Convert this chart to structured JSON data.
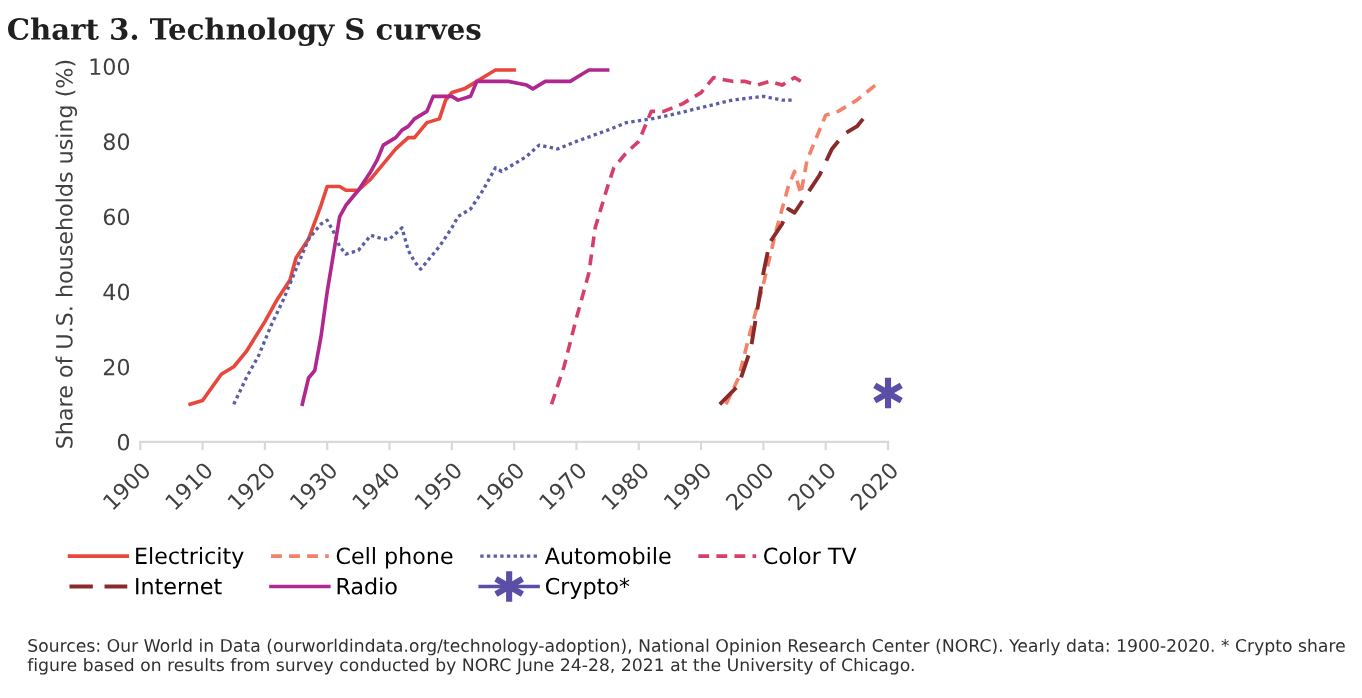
{
  "chart_data": {
    "type": "line",
    "title": "Chart 3. Technology S curves",
    "ylabel": "Share of U.S. households using (%)",
    "xlim": [
      1900,
      2020
    ],
    "xticks": [
      1900,
      1910,
      1920,
      1930,
      1940,
      1950,
      1960,
      1970,
      1980,
      1990,
      2000,
      2010,
      2020
    ],
    "ylim": [
      0,
      100
    ],
    "yticks": [
      0,
      20,
      40,
      60,
      80,
      100
    ],
    "grid": false,
    "legend": "bottom",
    "annotations": [
      "Sources: Our World in Data (ourworldindata.org/technology-adoption), National Opinion Research Center (NORC). Yearly data: 1900-2020. * Crypto share figure based on results from survey conducted by NORC June 24-28, 2021 at the University of Chicago."
    ],
    "series": [
      {
        "name": "Electricity",
        "color": "#e8473b",
        "line_style": "solid",
        "x": [
          1908,
          1910,
          1913,
          1915,
          1917,
          1920,
          1922,
          1924,
          1925,
          1927,
          1929,
          1930,
          1932,
          1933,
          1935,
          1937,
          1939,
          1941,
          1943,
          1944,
          1946,
          1948,
          1949,
          1950,
          1952,
          1954,
          1956,
          1957,
          1960
        ],
        "values": [
          10,
          11,
          18,
          20,
          24,
          32,
          38,
          43,
          49,
          54,
          63,
          68,
          68,
          67,
          67,
          70,
          74,
          78,
          81,
          81,
          85,
          86,
          91,
          93,
          94,
          96,
          98,
          99,
          99
        ]
      },
      {
        "name": "Cell phone",
        "color": "#f4826a",
        "line_style": "dashed",
        "x": [
          1994,
          1996,
          1998,
          2000,
          2002,
          2004,
          2005,
          2006,
          2007,
          2009,
          2010,
          2012,
          2015,
          2018
        ],
        "values": [
          10,
          17,
          30,
          42,
          56,
          68,
          72,
          66,
          75,
          83,
          87,
          88,
          91,
          95
        ]
      },
      {
        "name": "Automobile",
        "color": "#5b5ea6",
        "line_style": "dotted",
        "x": [
          1915,
          1917,
          1919,
          1921,
          1923,
          1925,
          1927,
          1929,
          1930,
          1931,
          1932,
          1933,
          1935,
          1936,
          1937,
          1939,
          1940,
          1942,
          1943,
          1944,
          1945,
          1946,
          1948,
          1950,
          1951,
          1953,
          1955,
          1957,
          1958,
          1960,
          1962,
          1964,
          1967,
          1970,
          1975,
          1978,
          1982,
          1985,
          1990,
          1995,
          2000,
          2003,
          2005
        ],
        "values": [
          10,
          17,
          23,
          31,
          38,
          46,
          54,
          58,
          59,
          56,
          52,
          50,
          51,
          53,
          55,
          54,
          54,
          57,
          51,
          48,
          46,
          48,
          52,
          57,
          60,
          62,
          67,
          73,
          72,
          74,
          76,
          79,
          78,
          80,
          83,
          85,
          86,
          87,
          89,
          91,
          92,
          91,
          91
        ]
      },
      {
        "name": "Color TV",
        "color": "#d63f6a",
        "line_style": "dashed",
        "x": [
          1966,
          1968,
          1970,
          1972,
          1973,
          1975,
          1976,
          1978,
          1980,
          1982,
          1984,
          1987,
          1990,
          1992,
          1995,
          1997,
          1999,
          2001,
          2003,
          2005,
          2006
        ],
        "values": [
          10,
          20,
          33,
          45,
          57,
          68,
          73,
          77,
          80,
          88,
          88,
          90,
          93,
          97,
          96,
          96,
          95,
          96,
          95,
          97,
          96
        ]
      },
      {
        "name": "Internet",
        "color": "#8b2a2a",
        "line_style": "longdash",
        "x": [
          1993,
          1996,
          1998,
          2000,
          2001,
          2003,
          2004,
          2005,
          2007,
          2009,
          2011,
          2013,
          2015,
          2016
        ],
        "values": [
          10,
          15,
          25,
          45,
          53,
          58,
          62,
          61,
          66,
          71,
          78,
          82,
          84,
          86
        ]
      },
      {
        "name": "Radio",
        "color": "#b0278f",
        "line_style": "solid",
        "x": [
          1926,
          1927,
          1928,
          1929,
          1930,
          1931,
          1932,
          1933,
          1935,
          1937,
          1938,
          1939,
          1941,
          1942,
          1943,
          1944,
          1946,
          1947,
          1948,
          1950,
          1951,
          1953,
          1954,
          1959,
          1962,
          1963,
          1965,
          1967,
          1969,
          1971,
          1972,
          1975
        ],
        "values": [
          10,
          17,
          19,
          28,
          40,
          50,
          60,
          63,
          67,
          72,
          75,
          79,
          81,
          83,
          84,
          86,
          88,
          92,
          92,
          92,
          91,
          92,
          96,
          96,
          95,
          94,
          96,
          96,
          96,
          98,
          99,
          99
        ]
      },
      {
        "name": "Crypto*",
        "color": "#5b4ea6",
        "line_style": "solid",
        "marker": "cross",
        "x": [
          2020
        ],
        "values": [
          13
        ]
      }
    ]
  }
}
